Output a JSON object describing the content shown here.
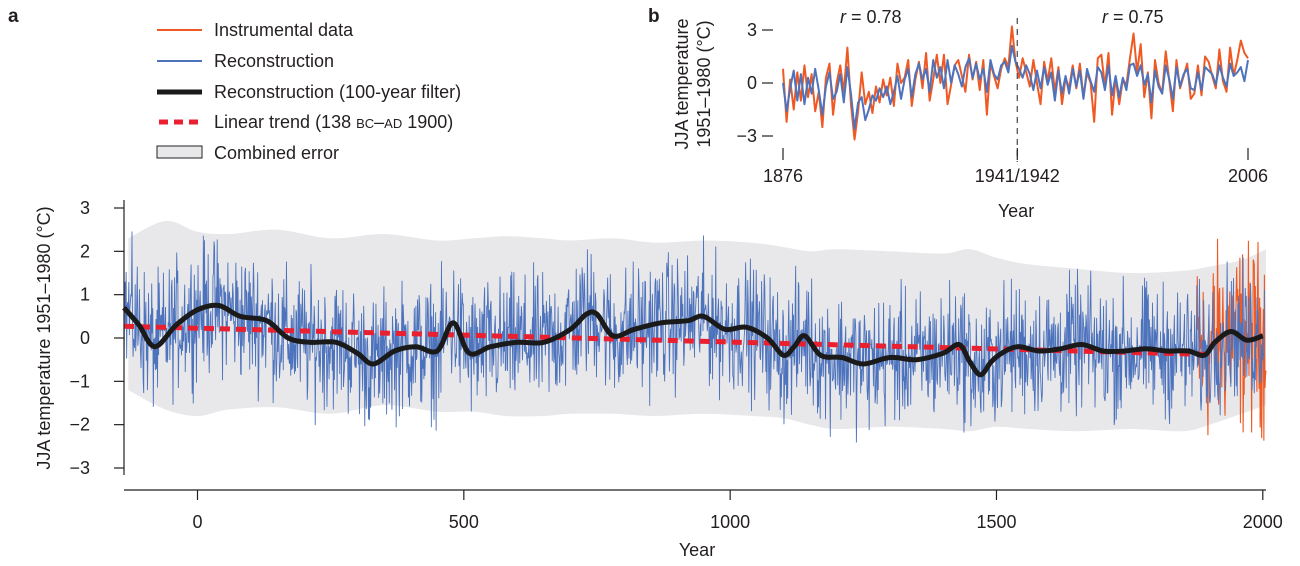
{
  "colors": {
    "instrumental": "#ef5a24",
    "reconstruction": "#4e73bd",
    "filter": "#1a1a1a",
    "trend": "#e8202f",
    "error_fill": "#e8e8ea",
    "axis": "#231f20"
  },
  "panel_a": {
    "letter": "a",
    "legend": {
      "instrumental": "Instrumental data",
      "reconstruction": "Reconstruction",
      "filter": "Reconstruction (100-year filter)",
      "trend_prefix": "Linear trend (138 ",
      "trend_bc": "BC",
      "trend_mid": "–",
      "trend_ad": "AD",
      "trend_suffix": " 1900)",
      "error": "Combined error"
    }
  },
  "panel_b": {
    "letter": "b",
    "r_left": "0.78",
    "r_right": "0.75",
    "r_symbol": "r",
    "r_equals": " = "
  },
  "chart_data": [
    {
      "type": "line",
      "panel": "a",
      "xlabel": "Year",
      "ylabel": "JJA temperature 1951–1980 (°C)",
      "xlim": [
        -138,
        2006
      ],
      "ylim": [
        -3.2,
        3.2
      ],
      "xticks": [
        0,
        500,
        1000,
        1500,
        2000
      ],
      "xtick_labels": [
        "0",
        "500",
        "1000",
        "1500",
        "2000"
      ],
      "yticks": [
        3,
        2,
        1,
        0,
        -1,
        -2,
        -3
      ],
      "ytick_labels": [
        "3",
        "2",
        "1",
        "0",
        "−1",
        "−2",
        "−3"
      ],
      "grid": false,
      "legend_position": "top-left",
      "series": [
        {
          "name": "Reconstruction (100-year filter)",
          "style": "solid-thick",
          "x": [
            -138,
            -110,
            -80,
            -40,
            0,
            40,
            80,
            130,
            170,
            210,
            260,
            300,
            330,
            370,
            410,
            450,
            480,
            510,
            550,
            600,
            650,
            700,
            730,
            750,
            780,
            820,
            870,
            920,
            950,
            990,
            1030,
            1070,
            1100,
            1120,
            1140,
            1170,
            1210,
            1250,
            1300,
            1350,
            1400,
            1430,
            1450,
            1470,
            1490,
            1510,
            1540,
            1580,
            1620,
            1660,
            1700,
            1740,
            1780,
            1820,
            1860,
            1890,
            1910,
            1940,
            1970,
            2000
          ],
          "y": [
            0.7,
            0.3,
            -0.2,
            0.3,
            0.65,
            0.75,
            0.5,
            0.4,
            0.0,
            -0.1,
            -0.1,
            -0.35,
            -0.6,
            -0.3,
            -0.2,
            -0.3,
            0.35,
            -0.35,
            -0.2,
            -0.1,
            -0.1,
            0.2,
            0.55,
            0.55,
            0.05,
            0.2,
            0.35,
            0.4,
            0.5,
            0.2,
            0.25,
            0.0,
            -0.4,
            -0.2,
            0.05,
            -0.4,
            -0.45,
            -0.6,
            -0.45,
            -0.5,
            -0.35,
            -0.15,
            -0.55,
            -0.85,
            -0.55,
            -0.35,
            -0.2,
            -0.3,
            -0.25,
            -0.15,
            -0.3,
            -0.3,
            -0.25,
            -0.3,
            -0.3,
            -0.4,
            -0.1,
            0.15,
            -0.05,
            0.05
          ]
        },
        {
          "name": "Linear trend (138 BC–AD 1900)",
          "style": "dashed",
          "x": [
            -138,
            1900
          ],
          "y": [
            0.27,
            -0.38
          ]
        },
        {
          "name": "Combined error",
          "style": "band",
          "x": [
            -130,
            -60,
            0,
            60,
            150,
            250,
            350,
            450,
            520,
            580,
            650,
            700,
            780,
            860,
            950,
            1040,
            1100,
            1150,
            1200,
            1300,
            1400,
            1450,
            1500,
            1560,
            1650,
            1750,
            1850,
            1900,
            1960,
            2006
          ],
          "upper": [
            2.3,
            2.7,
            2.45,
            2.4,
            2.5,
            2.3,
            2.4,
            2.25,
            2.3,
            2.35,
            2.3,
            2.25,
            2.3,
            2.2,
            2.25,
            2.2,
            2.1,
            2.0,
            2.05,
            2.0,
            1.95,
            2.05,
            1.85,
            1.7,
            1.6,
            1.5,
            1.55,
            1.65,
            1.8,
            2.05
          ],
          "lower": [
            -1.2,
            -1.65,
            -1.8,
            -1.65,
            -1.6,
            -1.75,
            -1.55,
            -1.7,
            -1.7,
            -1.8,
            -1.8,
            -1.75,
            -1.75,
            -1.8,
            -1.75,
            -1.8,
            -1.85,
            -2.0,
            -2.1,
            -2.05,
            -2.1,
            -2.15,
            -2.05,
            -2.1,
            -2.15,
            -2.1,
            -2.15,
            -2.0,
            -1.75,
            -1.55
          ]
        },
        {
          "name": "Reconstruction",
          "style": "annual",
          "note_values": "dense annual series; envelope approx ±1.5 about the 100-year filter",
          "x_range": [
            -138,
            2003
          ],
          "noise_amplitude": 1.05
        },
        {
          "name": "Instrumental data",
          "style": "annual",
          "x_range": [
            1876,
            2006
          ],
          "noise_amplitude": 1.5
        }
      ]
    },
    {
      "type": "line",
      "panel": "b",
      "xlabel": "Year",
      "ylabel": "JJA temperature 1951–1980 (°C)",
      "xlim": [
        1876,
        2006
      ],
      "ylim": [
        -3.5,
        3.5
      ],
      "xticks": [
        1876,
        1941.5,
        2006
      ],
      "xtick_labels": [
        "1876",
        "1941/1942",
        "2006"
      ],
      "yticks": [
        3,
        0,
        -3
      ],
      "ytick_labels": [
        "3",
        "0",
        "−3"
      ],
      "split_year": 1941.5,
      "grid": false,
      "series": [
        {
          "name": "Instrumental data",
          "x": [
            1876,
            1877,
            1878,
            1879,
            1880,
            1881,
            1882,
            1883,
            1884,
            1885,
            1886,
            1887,
            1888,
            1889,
            1890,
            1891,
            1892,
            1893,
            1894,
            1895,
            1896,
            1897,
            1898,
            1899,
            1900,
            1901,
            1902,
            1903,
            1904,
            1905,
            1906,
            1907,
            1908,
            1909,
            1910,
            1911,
            1912,
            1913,
            1914,
            1915,
            1916,
            1917,
            1918,
            1919,
            1920,
            1921,
            1922,
            1923,
            1924,
            1925,
            1926,
            1927,
            1928,
            1929,
            1930,
            1931,
            1932,
            1933,
            1934,
            1935,
            1936,
            1937,
            1938,
            1939,
            1940,
            1941,
            1942,
            1943,
            1944,
            1945,
            1946,
            1947,
            1948,
            1949,
            1950,
            1951,
            1952,
            1953,
            1954,
            1955,
            1956,
            1957,
            1958,
            1959,
            1960,
            1961,
            1962,
            1963,
            1964,
            1965,
            1966,
            1967,
            1968,
            1969,
            1970,
            1971,
            1972,
            1973,
            1974,
            1975,
            1976,
            1977,
            1978,
            1979,
            1980,
            1981,
            1982,
            1983,
            1984,
            1985,
            1986,
            1987,
            1988,
            1989,
            1990,
            1991,
            1992,
            1993,
            1994,
            1995,
            1996,
            1997,
            1998,
            1999,
            2000,
            2001,
            2002,
            2003,
            2004,
            2005,
            2006
          ],
          "y": [
            0.8,
            -2.2,
            0.2,
            -1.5,
            0.6,
            -1.0,
            1.0,
            -0.8,
            0.5,
            -1.6,
            -0.5,
            -2.5,
            0.3,
            1.1,
            -1.8,
            0.0,
            1.0,
            -0.5,
            2.0,
            -1.2,
            -3.2,
            -1.6,
            0.6,
            -1.2,
            -0.5,
            -1.7,
            -0.2,
            -1.1,
            0.2,
            -0.7,
            0.3,
            -1.3,
            1.1,
            0.0,
            0.3,
            1.3,
            -1.3,
            0.2,
            1.2,
            -0.3,
            1.7,
            -1.0,
            0.2,
            1.6,
            0.0,
            1.6,
            -1.2,
            -0.1,
            1.0,
            1.3,
            0.4,
            -0.5,
            1.6,
            0.2,
            1.2,
            -0.4,
            1.3,
            -1.8,
            1.1,
            0.4,
            -0.3,
            0.8,
            1.4,
            0.9,
            3.2,
            1.2,
            0.3,
            1.4,
            0.6,
            -0.2,
            1.3,
            0.0,
            -1.2,
            1.2,
            0.1,
            1.4,
            -0.5,
            0.9,
            -1.2,
            0.3,
            -0.3,
            1.0,
            -0.3,
            1.1,
            -0.8,
            0.6,
            0.0,
            -2.2,
            1.4,
            1.6,
            -0.2,
            1.7,
            -1.8,
            0.3,
            -1.2,
            0.2,
            -0.1,
            1.4,
            2.8,
            0.6,
            2.2,
            -0.8,
            0.6,
            -2.0,
            1.3,
            0.0,
            -0.6,
            1.8,
            0.1,
            -1.6,
            1.3,
            -0.3,
            0.4,
            1.1,
            -0.9,
            -0.6,
            1.0,
            -0.7,
            1.5,
            1.2,
            0.4,
            -0.3,
            1.9,
            0.1,
            -0.5,
            2.0,
            0.4,
            1.3,
            2.4,
            1.7,
            1.4
          ],
          "color": "#ef5a24"
        },
        {
          "name": "Reconstruction",
          "x": [
            1876,
            1877,
            1878,
            1879,
            1880,
            1881,
            1882,
            1883,
            1884,
            1885,
            1886,
            1887,
            1888,
            1889,
            1890,
            1891,
            1892,
            1893,
            1894,
            1895,
            1896,
            1897,
            1898,
            1899,
            1900,
            1901,
            1902,
            1903,
            1904,
            1905,
            1906,
            1907,
            1908,
            1909,
            1910,
            1911,
            1912,
            1913,
            1914,
            1915,
            1916,
            1917,
            1918,
            1919,
            1920,
            1921,
            1922,
            1923,
            1924,
            1925,
            1926,
            1927,
            1928,
            1929,
            1930,
            1931,
            1932,
            1933,
            1934,
            1935,
            1936,
            1937,
            1938,
            1939,
            1940,
            1941,
            1942,
            1943,
            1944,
            1945,
            1946,
            1947,
            1948,
            1949,
            1950,
            1951,
            1952,
            1953,
            1954,
            1955,
            1956,
            1957,
            1958,
            1959,
            1960,
            1961,
            1962,
            1963,
            1964,
            1965,
            1966,
            1967,
            1968,
            1969,
            1970,
            1971,
            1972,
            1973,
            1974,
            1975,
            1976,
            1977,
            1978,
            1979,
            1980,
            1981,
            1982,
            1983,
            1984,
            1985,
            1986,
            1987,
            1988,
            1989,
            1990,
            1991,
            1992,
            1993,
            1994,
            1995,
            1996,
            1997,
            1998,
            1999,
            2000,
            2001,
            2002,
            2003,
            2004,
            2005,
            2006
          ],
          "y": [
            0.0,
            -1.6,
            -0.3,
            0.7,
            -1.0,
            0.5,
            -1.2,
            0.3,
            -0.6,
            0.8,
            -0.4,
            -1.8,
            -0.2,
            0.6,
            -0.9,
            -0.5,
            0.5,
            -1.1,
            0.9,
            -0.6,
            -2.6,
            -1.1,
            -0.8,
            -2.1,
            -1.5,
            -0.7,
            -1.0,
            -0.3,
            -0.8,
            -0.2,
            -1.2,
            -0.5,
            0.4,
            -0.9,
            0.2,
            0.8,
            -0.8,
            0.5,
            1.1,
            0.2,
            0.8,
            -0.5,
            1.3,
            0.3,
            0.9,
            -0.3,
            1.3,
            0.0,
            1.0,
            0.5,
            -0.2,
            0.9,
            1.4,
            0.3,
            1.1,
            0.2,
            0.8,
            -0.5,
            1.3,
            0.5,
            0.2,
            1.0,
            1.2,
            0.6,
            2.1,
            1.2,
            0.8,
            0.3,
            1.0,
            0.5,
            -0.4,
            0.7,
            -0.3,
            0.9,
            -0.1,
            0.6,
            -1.0,
            0.7,
            -0.6,
            0.4,
            -0.6,
            0.8,
            -0.2,
            0.7,
            -0.9,
            0.8,
            0.1,
            -0.5,
            0.9,
            0.6,
            -0.4,
            1.0,
            -0.7,
            0.4,
            -0.8,
            0.3,
            -0.4,
            1.0,
            1.1,
            0.4,
            1.0,
            -0.1,
            0.5,
            -1.1,
            0.7,
            -0.2,
            -0.6,
            1.0,
            0.2,
            -0.9,
            0.9,
            -0.2,
            0.5,
            0.8,
            -0.3,
            -0.4,
            0.6,
            -0.4,
            0.9,
            0.7,
            0.5,
            -0.1,
            1.0,
            0.3,
            -0.2,
            1.1,
            0.4,
            0.6,
            0.9,
            0.1,
            1.3
          ],
          "color": "#4e73bd"
        }
      ]
    }
  ]
}
